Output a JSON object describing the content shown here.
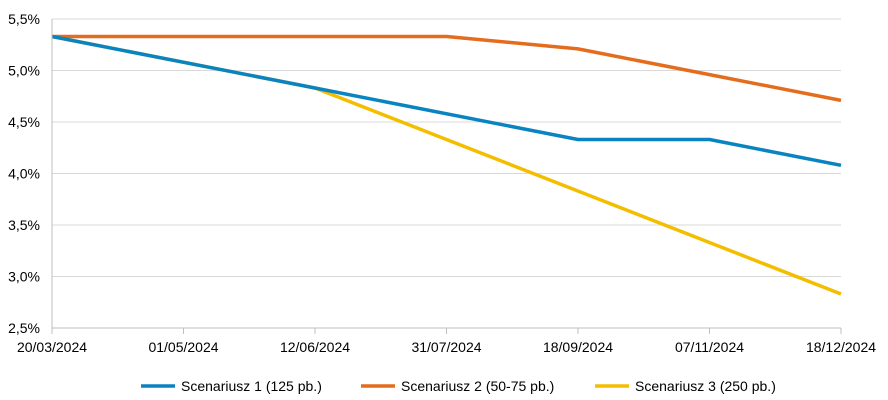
{
  "chart_data": {
    "type": "line",
    "title": "",
    "xlabel": "",
    "ylabel": "",
    "x": [
      "20/03/2024",
      "01/05/2024",
      "12/06/2024",
      "31/07/2024",
      "18/09/2024",
      "07/11/2024",
      "18/12/2024"
    ],
    "x_tick_labels": [
      "20/03/2024",
      "01/05/2024",
      "12/06/2024",
      "31/07/2024",
      "18/09/2024",
      "07/11/2024",
      "18/12/2024"
    ],
    "ylim": [
      2.5,
      5.5
    ],
    "y_ticks": [
      2.5,
      3.0,
      3.5,
      4.0,
      4.5,
      5.0,
      5.5
    ],
    "y_tick_labels": [
      "2,5%",
      "3,0%",
      "3,5%",
      "4,0%",
      "4,5%",
      "5,0%",
      "5,5%"
    ],
    "grid": true,
    "legend_position": "bottom",
    "series": [
      {
        "name": "Scenariusz 1 (125 pb.)",
        "color": "#0A84C0",
        "values": [
          5.33,
          null,
          4.83,
          null,
          4.33,
          4.33,
          4.08
        ]
      },
      {
        "name": "Scenariusz 2 (50-75 pb.)",
        "color": "#E46C1D",
        "values": [
          5.33,
          5.33,
          5.33,
          5.33,
          5.21,
          4.96,
          4.71
        ]
      },
      {
        "name": "Scenariusz 3 (250 pb.)",
        "color": "#F4BE00",
        "values": [
          5.33,
          null,
          4.83,
          null,
          null,
          null,
          2.83
        ]
      }
    ]
  }
}
